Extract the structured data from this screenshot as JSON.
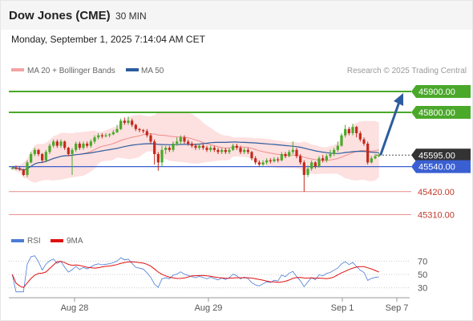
{
  "header": {
    "title": "Dow Jones (CME)",
    "timeframe": "30 MIN",
    "datetime": "Monday, September 1, 2025 7:14:04 AM CET"
  },
  "legend": {
    "ma20": "MA 20 + Bollinger Bands",
    "ma50": "MA 50",
    "rsi": "RSI",
    "ma9": "9MA"
  },
  "credit": "Research © 2025 Trading Central",
  "colors": {
    "up": "#4aa82b",
    "down": "#c4281c",
    "support": "#3a5fd2",
    "resist_line": "#4aa82b",
    "red_level": "#e88a8a",
    "band": "#fde0e0",
    "ma50": "#2d5c9e",
    "rsi": "#4b7bd6",
    "rsi_ma": "#e01010",
    "price_box": "#333333"
  },
  "chart_data": {
    "type": "candlestick",
    "timeframe": "30 MIN",
    "x_tick_labels": [
      "Aug 28",
      "Aug 29",
      "Sep 1",
      "Sep 7"
    ],
    "ylim": [
      45250,
      45950
    ],
    "levels": [
      {
        "value": 45900,
        "label": "45900.00",
        "kind": "resistance"
      },
      {
        "value": 45800,
        "label": "45800.00",
        "kind": "resistance"
      },
      {
        "value": 45595,
        "label": "45595.00",
        "kind": "last-price"
      },
      {
        "value": 45540,
        "label": "45540.00",
        "kind": "pivot"
      },
      {
        "value": 45420,
        "label": "45420.00",
        "kind": "support"
      },
      {
        "value": 45310,
        "label": "45310.00",
        "kind": "support"
      }
    ],
    "projection": {
      "from": 45595,
      "to": 45900
    },
    "candles": [
      [
        45530,
        45535,
        45525,
        45540
      ],
      [
        45535,
        45530,
        45525,
        45545
      ],
      [
        45530,
        45525,
        45520,
        45540
      ],
      [
        45525,
        45500,
        45495,
        45530
      ],
      [
        45500,
        45560,
        45490,
        45570
      ],
      [
        45560,
        45600,
        45555,
        45610
      ],
      [
        45600,
        45620,
        45590,
        45630
      ],
      [
        45620,
        45600,
        45590,
        45625
      ],
      [
        45600,
        45570,
        45560,
        45605
      ],
      [
        45570,
        45610,
        45560,
        45620
      ],
      [
        45610,
        45640,
        45600,
        45650
      ],
      [
        45640,
        45660,
        45630,
        45670
      ],
      [
        45660,
        45640,
        45630,
        45670
      ],
      [
        45640,
        45660,
        45630,
        45670
      ],
      [
        45660,
        45630,
        45620,
        45665
      ],
      [
        45630,
        45600,
        45590,
        45635
      ],
      [
        45600,
        45620,
        45500,
        45630
      ],
      [
        45620,
        45650,
        45610,
        45660
      ],
      [
        45650,
        45630,
        45620,
        45660
      ],
      [
        45630,
        45650,
        45620,
        45660
      ],
      [
        45650,
        45640,
        45630,
        45660
      ],
      [
        45640,
        45660,
        45630,
        45670
      ],
      [
        45660,
        45680,
        45650,
        45690
      ],
      [
        45680,
        45690,
        45670,
        45700
      ],
      [
        45690,
        45685,
        45675,
        45700
      ],
      [
        45685,
        45690,
        45680,
        45700
      ],
      [
        45690,
        45695,
        45680,
        45700
      ],
      [
        45695,
        45705,
        45690,
        45715
      ],
      [
        45705,
        45720,
        45700,
        45740
      ],
      [
        45720,
        45760,
        45715,
        45770
      ],
      [
        45760,
        45750,
        45740,
        45775
      ],
      [
        45750,
        45760,
        45740,
        45780
      ],
      [
        45760,
        45740,
        45730,
        45770
      ],
      [
        45740,
        45720,
        45710,
        45745
      ],
      [
        45720,
        45715,
        45705,
        45725
      ],
      [
        45715,
        45710,
        45700,
        45720
      ],
      [
        45710,
        45690,
        45680,
        45720
      ],
      [
        45690,
        45660,
        45650,
        45700
      ],
      [
        45660,
        45600,
        45550,
        45670
      ],
      [
        45600,
        45560,
        45520,
        45610
      ],
      [
        45560,
        45620,
        45540,
        45640
      ],
      [
        45620,
        45630,
        45600,
        45640
      ],
      [
        45630,
        45620,
        45610,
        45640
      ],
      [
        45620,
        45650,
        45610,
        45660
      ],
      [
        45650,
        45660,
        45640,
        45680
      ],
      [
        45660,
        45680,
        45650,
        45690
      ],
      [
        45680,
        45660,
        45650,
        45690
      ],
      [
        45660,
        45650,
        45640,
        45670
      ],
      [
        45650,
        45640,
        45630,
        45660
      ],
      [
        45640,
        45630,
        45620,
        45650
      ],
      [
        45630,
        45640,
        45620,
        45650
      ],
      [
        45640,
        45630,
        45620,
        45650
      ],
      [
        45630,
        45620,
        45610,
        45640
      ],
      [
        45620,
        45630,
        45610,
        45640
      ],
      [
        45630,
        45620,
        45610,
        45640
      ],
      [
        45620,
        45610,
        45600,
        45630
      ],
      [
        45610,
        45620,
        45600,
        45630
      ],
      [
        45620,
        45610,
        45600,
        45630
      ],
      [
        45610,
        45620,
        45600,
        45630
      ],
      [
        45620,
        45640,
        45615,
        45650
      ],
      [
        45640,
        45630,
        45620,
        45650
      ],
      [
        45630,
        45610,
        45600,
        45640
      ],
      [
        45610,
        45620,
        45600,
        45630
      ],
      [
        45620,
        45610,
        45600,
        45630
      ],
      [
        45610,
        45580,
        45570,
        45615
      ],
      [
        45580,
        45560,
        45550,
        45590
      ],
      [
        45560,
        45550,
        45540,
        45570
      ],
      [
        45550,
        45560,
        45540,
        45570
      ],
      [
        45560,
        45570,
        45550,
        45580
      ],
      [
        45570,
        45565,
        45555,
        45580
      ],
      [
        45565,
        45575,
        45560,
        45585
      ],
      [
        45575,
        45570,
        45560,
        45585
      ],
      [
        45570,
        45600,
        45565,
        45610
      ],
      [
        45600,
        45590,
        45580,
        45610
      ],
      [
        45590,
        45610,
        45585,
        45620
      ],
      [
        45610,
        45620,
        45600,
        45660
      ],
      [
        45620,
        45590,
        45580,
        45630
      ],
      [
        45590,
        45560,
        45550,
        45600
      ],
      [
        45560,
        45500,
        45420,
        45570
      ],
      [
        45500,
        45530,
        45490,
        45545
      ],
      [
        45530,
        45560,
        45520,
        45570
      ],
      [
        45560,
        45540,
        45530,
        45565
      ],
      [
        45540,
        45580,
        45535,
        45590
      ],
      [
        45580,
        45570,
        45560,
        45595
      ],
      [
        45570,
        45590,
        45560,
        45600
      ],
      [
        45590,
        45600,
        45580,
        45620
      ],
      [
        45600,
        45620,
        45590,
        45630
      ],
      [
        45620,
        45640,
        45610,
        45660
      ],
      [
        45640,
        45690,
        45635,
        45700
      ],
      [
        45690,
        45720,
        45680,
        45740
      ],
      [
        45720,
        45700,
        45690,
        45730
      ],
      [
        45700,
        45730,
        45690,
        45745
      ],
      [
        45730,
        45700,
        45680,
        45735
      ],
      [
        45700,
        45670,
        45660,
        45710
      ],
      [
        45670,
        45650,
        45640,
        45680
      ],
      [
        45650,
        45560,
        45550,
        45660
      ],
      [
        45560,
        45580,
        45555,
        45590
      ],
      [
        45580,
        45590,
        45575,
        45600
      ],
      [
        45590,
        45595,
        45585,
        45605
      ]
    ],
    "rsi": {
      "ticks": [
        70,
        50,
        30
      ],
      "ylim": [
        20,
        80
      ]
    }
  }
}
